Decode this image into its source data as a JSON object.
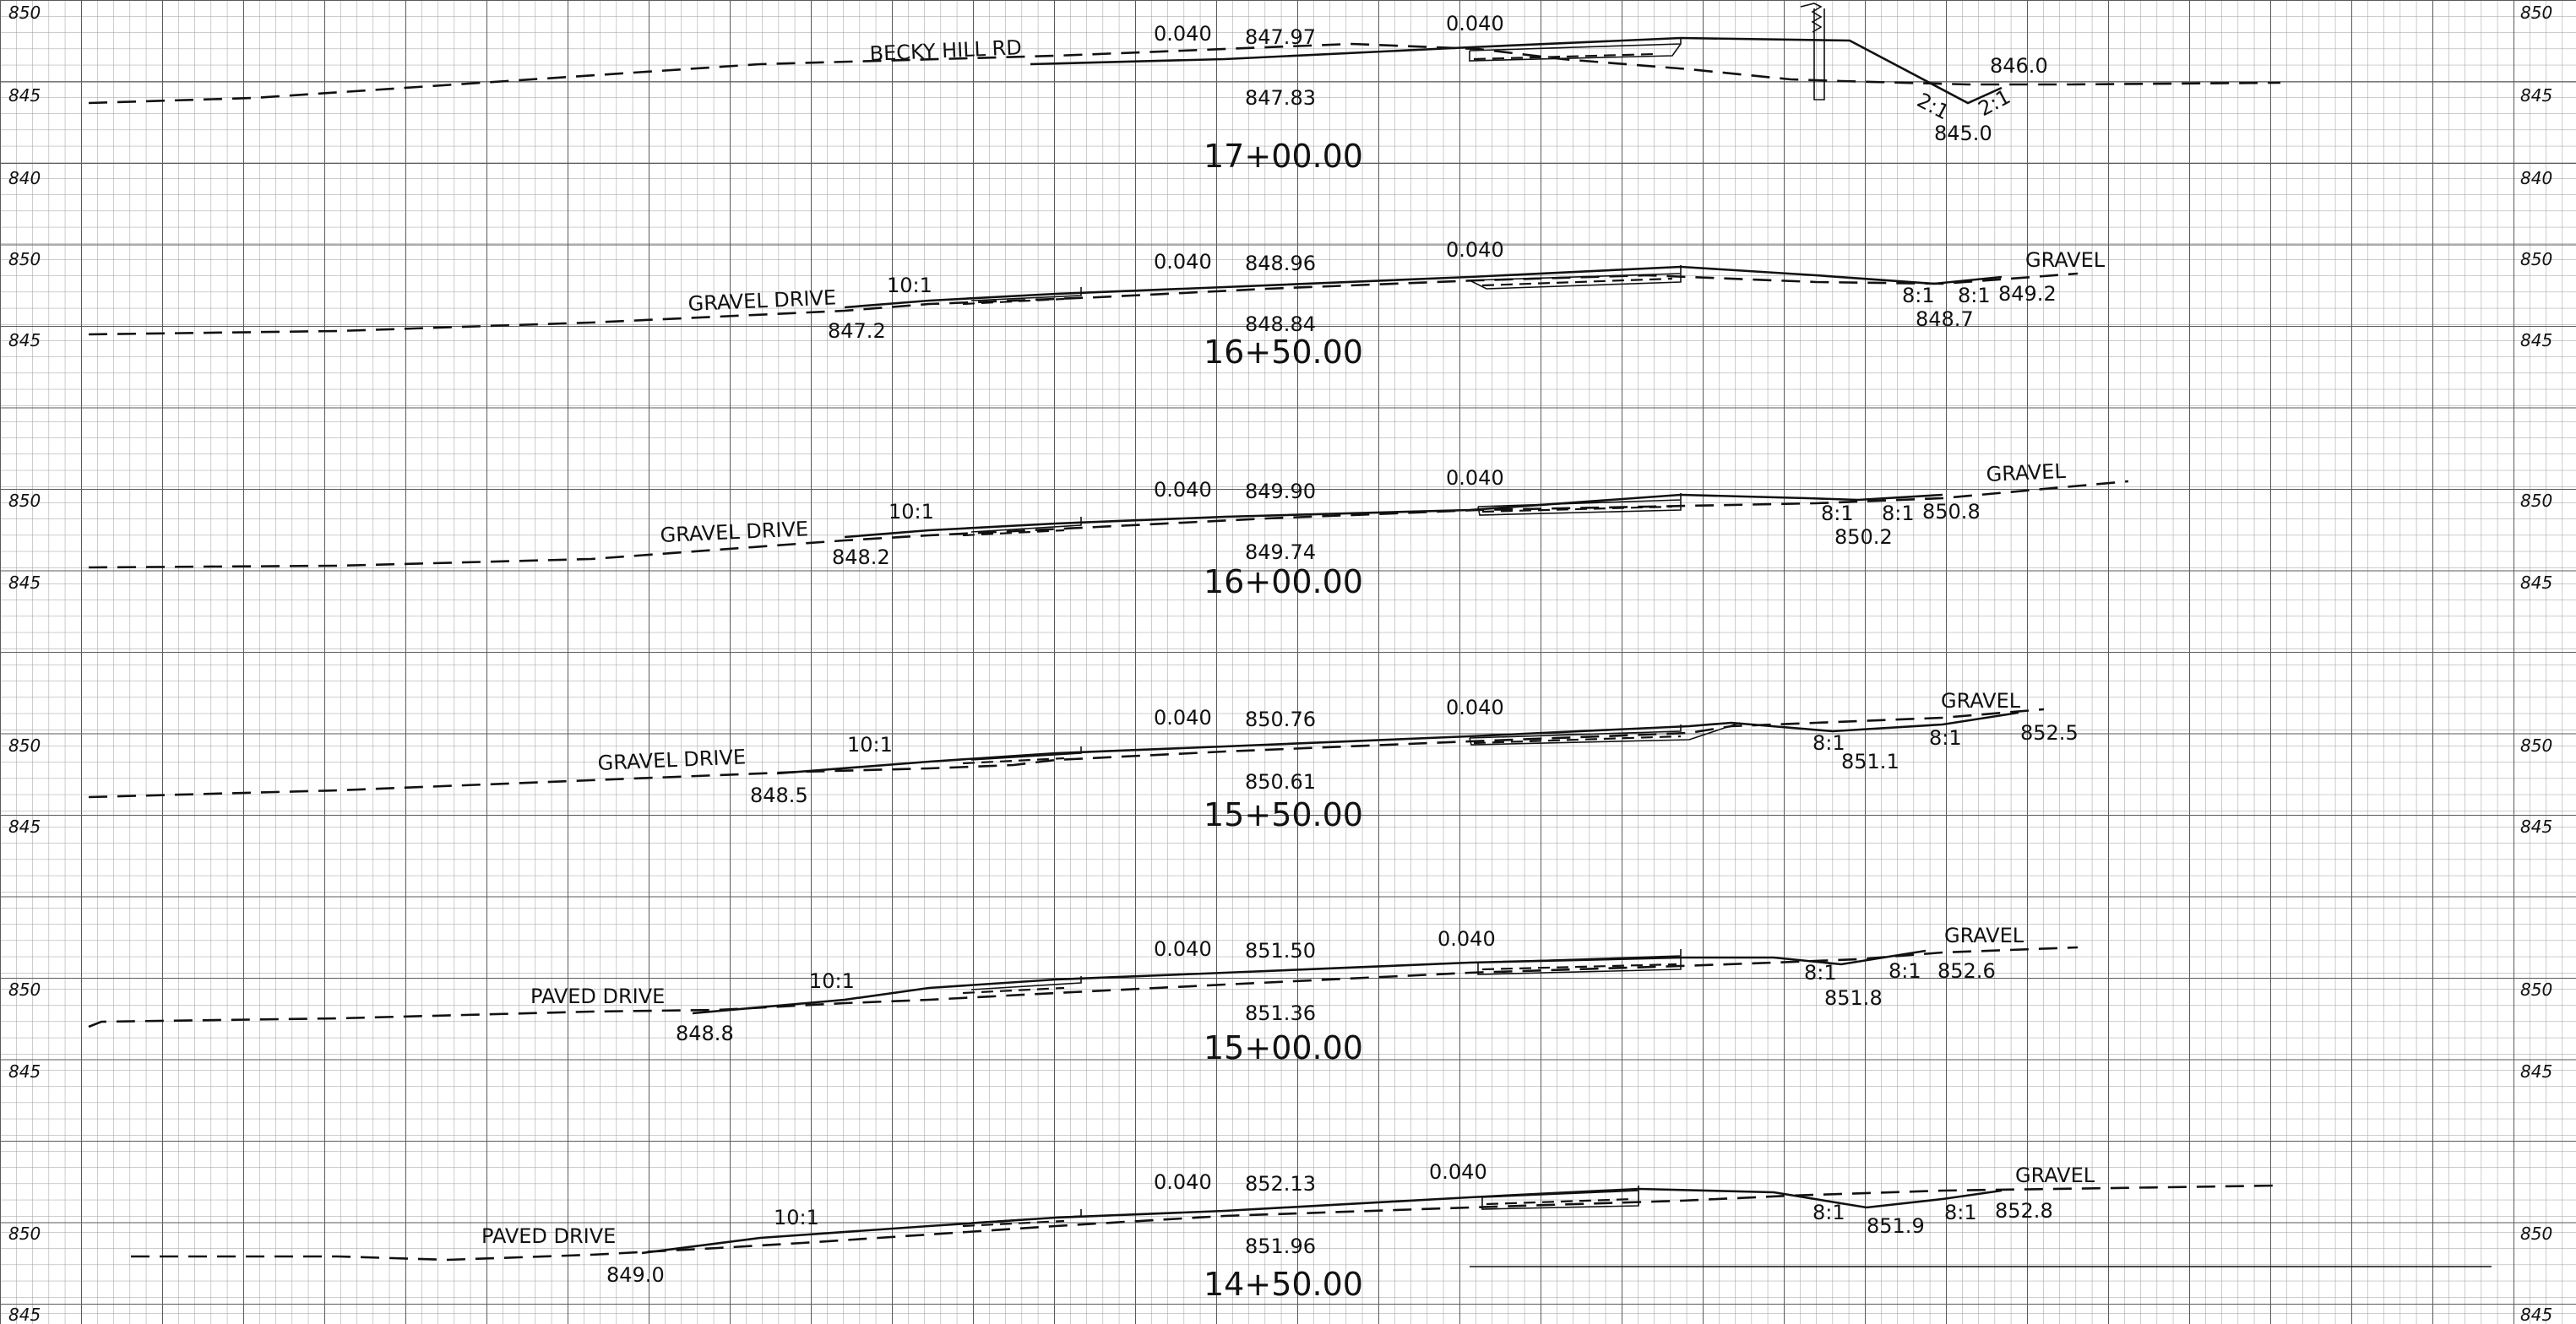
{
  "sheet": {
    "left_elevation_labels": [
      "850",
      "845",
      "840",
      "850",
      "845",
      "850",
      "845",
      "850",
      "845",
      "850",
      "845",
      "850",
      "845"
    ],
    "right_elevation_labels": [
      "850",
      "845",
      "840",
      "850",
      "845",
      "850",
      "845",
      "850",
      "845",
      "850",
      "845",
      "850",
      "845"
    ]
  },
  "sections": [
    {
      "station": "17+00.00",
      "drive_label": "BECKY HILL RD",
      "slope_left_label": "0.040",
      "slope_right_label": "0.040",
      "cl_finish_elev": "847.97",
      "cl_existing_elev": "847.83",
      "texts": [
        {
          "text": "846.0"
        },
        {
          "text": "845.0"
        },
        {
          "text": "2:1"
        },
        {
          "text": "2:1"
        }
      ]
    },
    {
      "station": "16+50.00",
      "drive_label": "GRAVEL DRIVE",
      "slope_left_label": "0.040",
      "slope_right_label": "0.040",
      "cl_finish_elev": "848.96",
      "cl_existing_elev": "848.84",
      "texts": [
        {
          "text": "10:1"
        },
        {
          "text": "847.2"
        },
        {
          "text": "GRAVEL"
        },
        {
          "text": "8:1"
        },
        {
          "text": "8:1"
        },
        {
          "text": "849.2"
        },
        {
          "text": "848.7"
        }
      ]
    },
    {
      "station": "16+00.00",
      "drive_label": "GRAVEL DRIVE",
      "slope_left_label": "0.040",
      "slope_right_label": "0.040",
      "cl_finish_elev": "849.90",
      "cl_existing_elev": "849.74",
      "texts": [
        {
          "text": "10:1"
        },
        {
          "text": "848.2"
        },
        {
          "text": "GRAVEL"
        },
        {
          "text": "8:1"
        },
        {
          "text": "8:1"
        },
        {
          "text": "850.8"
        },
        {
          "text": "850.2"
        }
      ]
    },
    {
      "station": "15+50.00",
      "drive_label": "GRAVEL DRIVE",
      "slope_left_label": "0.040",
      "slope_right_label": "0.040",
      "cl_finish_elev": "850.76",
      "cl_existing_elev": "850.61",
      "texts": [
        {
          "text": "10:1"
        },
        {
          "text": "848.5"
        },
        {
          "text": "GRAVEL"
        },
        {
          "text": "8:1"
        },
        {
          "text": "8:1"
        },
        {
          "text": "852.5"
        },
        {
          "text": "851.1"
        }
      ]
    },
    {
      "station": "15+00.00",
      "drive_label": "PAVED DRIVE",
      "slope_left_label": "0.040",
      "slope_right_label": "0.040",
      "cl_finish_elev": "851.50",
      "cl_existing_elev": "851.36",
      "texts": [
        {
          "text": "10:1"
        },
        {
          "text": "848.8"
        },
        {
          "text": "GRAVEL"
        },
        {
          "text": "8:1"
        },
        {
          "text": "8:1"
        },
        {
          "text": "852.6"
        },
        {
          "text": "851.8"
        }
      ]
    },
    {
      "station": "14+50.00",
      "drive_label": "PAVED DRIVE",
      "slope_left_label": "0.040",
      "slope_right_label": "0.040",
      "cl_finish_elev": "852.13",
      "cl_existing_elev": "851.96",
      "texts": [
        {
          "text": "10:1"
        },
        {
          "text": "849.0"
        },
        {
          "text": "GRAVEL"
        },
        {
          "text": "8:1"
        },
        {
          "text": "8:1"
        },
        {
          "text": "852.8"
        },
        {
          "text": "851.9"
        }
      ]
    }
  ]
}
